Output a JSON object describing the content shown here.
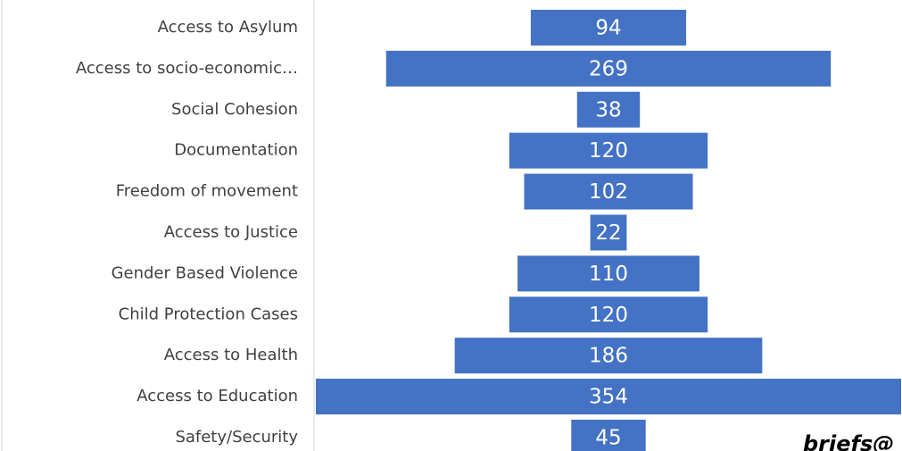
{
  "chart_data": {
    "type": "funnel",
    "categories": [
      "Access to Asylum",
      "Access to socio-economic…",
      "Social Cohesion",
      "Documentation",
      "Freedom of movement",
      "Access to Justice",
      "Gender Based Violence",
      "Child Protection Cases",
      "Access to Health",
      "Access to Education",
      "Safety/Security"
    ],
    "values": [
      94,
      269,
      38,
      120,
      102,
      22,
      110,
      120,
      186,
      354,
      45
    ],
    "color": "#4472c4",
    "annotation": "briefs@"
  }
}
